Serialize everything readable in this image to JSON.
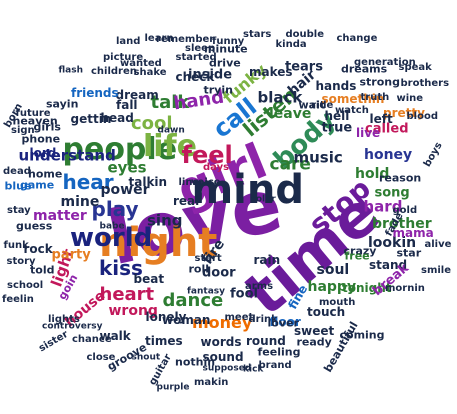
{
  "words": [
    {
      "text": "love",
      "color": "#7b1fa2"
    },
    {
      "text": "time",
      "color": "#6a1b9a"
    },
    {
      "text": "girl",
      "color": "#8e24aa"
    },
    {
      "text": "night",
      "color": "#e67e22"
    },
    {
      "text": "mind",
      "color": "#1b2a4a"
    },
    {
      "text": "people",
      "color": "#2e7d32"
    },
    {
      "text": "life",
      "color": "#7cb342"
    },
    {
      "text": "feel",
      "color": "#c2185b"
    },
    {
      "text": "body",
      "color": "#2e8b57"
    },
    {
      "text": "world",
      "color": "#1a237e"
    },
    {
      "text": "play",
      "color": "#283593"
    },
    {
      "text": "stop",
      "color": "#6a1b9a"
    },
    {
      "text": "hear",
      "color": "#1565c0"
    },
    {
      "text": "call",
      "color": "#1976d2"
    },
    {
      "text": "listen",
      "color": "#2e7d32"
    },
    {
      "text": "talk",
      "color": "#2e7d32"
    },
    {
      "text": "cool",
      "color": "#7cb342"
    },
    {
      "text": "hand",
      "color": "#8e24aa"
    },
    {
      "text": "kiss",
      "color": "#1a237e"
    },
    {
      "text": "heart",
      "color": "#c2185b"
    },
    {
      "text": "dance",
      "color": "#2e7d32"
    },
    {
      "text": "money",
      "color": "#ef6c00"
    },
    {
      "text": "understand",
      "color": "#1a237e"
    },
    {
      "text": "care",
      "color": "#2e7d32"
    },
    {
      "text": "music",
      "color": "#1b2a4a"
    },
    {
      "text": "light",
      "color": "#c2185b"
    },
    {
      "text": "eyes",
      "color": "#2e7d32"
    },
    {
      "text": "mine",
      "color": "#1b2a4a"
    },
    {
      "text": "sing",
      "color": "#1b2a4a"
    },
    {
      "text": "hold",
      "color": "#2e7d32"
    },
    {
      "text": "hard",
      "color": "#8e24aa"
    },
    {
      "text": "fire",
      "color": "#1b2a4a"
    },
    {
      "text": "honey",
      "color": "#283593"
    },
    {
      "text": "matter",
      "color": "#8e24aa"
    },
    {
      "text": "party",
      "color": "#e67e22"
    },
    {
      "text": "soul",
      "color": "#1b2a4a"
    },
    {
      "text": "happy",
      "color": "#2e7d32"
    },
    {
      "text": "house",
      "color": "#c2185b"
    },
    {
      "text": "beat",
      "color": "#1b2a4a"
    },
    {
      "text": "wrong",
      "color": "#c2185b"
    },
    {
      "text": "black",
      "color": "#1b2a4a"
    },
    {
      "text": "leave",
      "color": "#2e7d32"
    },
    {
      "text": "funky",
      "color": "#7cb342"
    },
    {
      "text": "power",
      "color": "#1b2a4a"
    },
    {
      "text": "real",
      "color": "#1b2a4a"
    },
    {
      "text": "fool",
      "color": "#1b2a4a"
    },
    {
      "text": "door",
      "color": "#1b2a4a"
    },
    {
      "text": "brother",
      "color": "#2e7d32"
    },
    {
      "text": "lookin",
      "color": "#1b2a4a"
    },
    {
      "text": "song",
      "color": "#2e7d32"
    },
    {
      "text": "hair",
      "color": "#1b2a4a"
    },
    {
      "text": "woman",
      "color": "#1b2a4a"
    },
    {
      "text": "called",
      "color": "#c2185b"
    },
    {
      "text": "true",
      "color": "#1b2a4a"
    },
    {
      "text": "live",
      "color": "#8e24aa"
    },
    {
      "text": "game",
      "color": "#1565c0"
    },
    {
      "text": "home",
      "color": "#1b2a4a"
    },
    {
      "text": "lord",
      "color": "#1a237e"
    },
    {
      "text": "talkin",
      "color": "#1b2a4a"
    },
    {
      "text": "inside",
      "color": "#1b2a4a"
    },
    {
      "text": "tears",
      "color": "#1b2a4a"
    },
    {
      "text": "pretty",
      "color": "#e67e22"
    },
    {
      "text": "reason",
      "color": "#1b2a4a"
    },
    {
      "text": "crazy",
      "color": "#1b2a4a"
    },
    {
      "text": "tonight",
      "color": "#2e7d32"
    },
    {
      "text": "stand",
      "color": "#1b2a4a"
    },
    {
      "text": "break",
      "color": "#8e24aa"
    },
    {
      "text": "fine",
      "color": "#1565c0"
    },
    {
      "text": "floor",
      "color": "#1565c0"
    },
    {
      "text": "lonely",
      "color": "#1b2a4a"
    },
    {
      "text": "words",
      "color": "#1b2a4a"
    },
    {
      "text": "sound",
      "color": "#1b2a4a"
    },
    {
      "text": "times",
      "color": "#1b2a4a"
    },
    {
      "text": "round",
      "color": "#1b2a4a"
    },
    {
      "text": "feeling",
      "color": "#1b2a4a"
    },
    {
      "text": "touch",
      "color": "#1b2a4a"
    },
    {
      "text": "told",
      "color": "#1b2a4a"
    },
    {
      "text": "rock",
      "color": "#1b2a4a"
    },
    {
      "text": "walk",
      "color": "#1b2a4a"
    },
    {
      "text": "sweet",
      "color": "#1b2a4a"
    },
    {
      "text": "wait",
      "color": "#1b2a4a"
    },
    {
      "text": "dream",
      "color": "#1b2a4a"
    },
    {
      "text": "free",
      "color": "#2e7d32"
    },
    {
      "text": "head",
      "color": "#1b2a4a"
    },
    {
      "text": "gettin",
      "color": "#1b2a4a"
    },
    {
      "text": "check",
      "color": "#1b2a4a"
    },
    {
      "text": "makes",
      "color": "#1b2a4a"
    },
    {
      "text": "fall",
      "color": "#1b2a4a"
    },
    {
      "text": "somethin",
      "color": "#e67e22"
    },
    {
      "text": "hands",
      "color": "#1b2a4a"
    },
    {
      "text": "hell",
      "color": "#1b2a4a"
    },
    {
      "text": "left",
      "color": "#1b2a4a"
    },
    {
      "text": "friends",
      "color": "#1565c0"
    },
    {
      "text": "mama",
      "color": "#8e24aa"
    },
    {
      "text": "star",
      "color": "#1b2a4a"
    },
    {
      "text": "rain",
      "color": "#1b2a4a"
    },
    {
      "text": "drive",
      "color": "#1b2a4a"
    },
    {
      "text": "tryin",
      "color": "#1b2a4a"
    },
    {
      "text": "minute",
      "color": "#1b2a4a"
    },
    {
      "text": "blue",
      "color": "#1565c0"
    },
    {
      "text": "roll",
      "color": "#1b2a4a"
    },
    {
      "text": "lover",
      "color": "#1b2a4a"
    },
    {
      "text": "ready",
      "color": "#1b2a4a"
    },
    {
      "text": "nothin",
      "color": "#1b2a4a"
    },
    {
      "text": "groove",
      "color": "#1b2a4a"
    },
    {
      "text": "goin",
      "color": "#8e24aa"
    },
    {
      "text": "guess",
      "color": "#1b2a4a"
    },
    {
      "text": "line",
      "color": "#1b2a4a"
    },
    {
      "text": "start",
      "color": "#1b2a4a"
    },
    {
      "text": "gold",
      "color": "#1b2a4a"
    },
    {
      "text": "fade",
      "color": "#1b2a4a"
    },
    {
      "text": "strong",
      "color": "#1b2a4a"
    },
    {
      "text": "days",
      "color": "#c2185b"
    },
    {
      "text": "voice",
      "color": "#1b2a4a"
    },
    {
      "text": "ride",
      "color": "#1b2a4a"
    },
    {
      "text": "watch",
      "color": "#1b2a4a"
    },
    {
      "text": "dreams",
      "color": "#1b2a4a"
    },
    {
      "text": "kinda",
      "color": "#1b2a4a"
    },
    {
      "text": "truth",
      "color": "#1b2a4a"
    },
    {
      "text": "heaven",
      "color": "#1b2a4a"
    },
    {
      "text": "sayin",
      "color": "#1b2a4a"
    },
    {
      "text": "children",
      "color": "#1b2a4a"
    },
    {
      "text": "stay",
      "color": "#1b2a4a"
    },
    {
      "text": "girls",
      "color": "#1b2a4a"
    },
    {
      "text": "phone",
      "color": "#1b2a4a"
    },
    {
      "text": "sign",
      "color": "#1b2a4a"
    },
    {
      "text": "dead",
      "color": "#1b2a4a"
    },
    {
      "text": "future",
      "color": "#1b2a4a"
    },
    {
      "text": "funk",
      "color": "#1b2a4a"
    },
    {
      "text": "story",
      "color": "#1b2a4a"
    },
    {
      "text": "school",
      "color": "#1b2a4a"
    },
    {
      "text": "feelin",
      "color": "#1b2a4a"
    },
    {
      "text": "boys",
      "color": "#1b2a4a"
    },
    {
      "text": "smile",
      "color": "#1b2a4a"
    },
    {
      "text": "mornin",
      "color": "#1b2a4a"
    },
    {
      "text": "coming",
      "color": "#1b2a4a"
    },
    {
      "text": "beautiful",
      "color": "#1b2a4a"
    },
    {
      "text": "close",
      "color": "#1b2a4a"
    },
    {
      "text": "chance",
      "color": "#1b2a4a"
    },
    {
      "text": "makin",
      "color": "#1b2a4a"
    },
    {
      "text": "guitar",
      "color": "#1b2a4a"
    },
    {
      "text": "arms",
      "color": "#1b2a4a"
    },
    {
      "text": "meet",
      "color": "#1b2a4a"
    },
    {
      "text": "drink",
      "color": "#1b2a4a"
    },
    {
      "text": "wanted",
      "color": "#1b2a4a"
    },
    {
      "text": "sleep",
      "color": "#1b2a4a"
    },
    {
      "text": "brand",
      "color": "#1b2a4a"
    },
    {
      "text": "remember",
      "color": "#1b2a4a"
    },
    {
      "text": "shake",
      "color": "#1b2a4a"
    },
    {
      "text": "learn",
      "color": "#1b2a4a"
    },
    {
      "text": "started",
      "color": "#1b2a4a"
    },
    {
      "text": "funny",
      "color": "#1b2a4a"
    },
    {
      "text": "picture",
      "color": "#1b2a4a"
    },
    {
      "text": "change",
      "color": "#1b2a4a"
    },
    {
      "text": "double",
      "color": "#1b2a4a"
    },
    {
      "text": "speak",
      "color": "#1b2a4a"
    },
    {
      "text": "generation",
      "color": "#1b2a4a"
    },
    {
      "text": "brothers",
      "color": "#1b2a4a"
    },
    {
      "text": "blood",
      "color": "#1b2a4a"
    },
    {
      "text": "wine",
      "color": "#1b2a4a"
    },
    {
      "text": "alive",
      "color": "#1b2a4a"
    },
    {
      "text": "stars",
      "color": "#1b2a4a"
    },
    {
      "text": "dawn",
      "color": "#1b2a4a"
    },
    {
      "text": "babe",
      "color": "#1b2a4a"
    },
    {
      "text": "land",
      "color": "#1b2a4a"
    },
    {
      "text": "color",
      "color": "#1b2a4a"
    },
    {
      "text": "born",
      "color": "#1b2a4a"
    },
    {
      "text": "lights",
      "color": "#1b2a4a"
    },
    {
      "text": "sister",
      "color": "#1b2a4a"
    },
    {
      "text": "shout",
      "color": "#1b2a4a"
    },
    {
      "text": "purple",
      "color": "#1b2a4a"
    },
    {
      "text": "supposed",
      "color": "#1b2a4a"
    },
    {
      "text": "kick",
      "color": "#1b2a4a"
    },
    {
      "text": "fantasy",
      "color": "#1b2a4a"
    },
    {
      "text": "controversy",
      "color": "#1b2a4a"
    },
    {
      "text": "mouth",
      "color": "#1b2a4a"
    },
    {
      "text": "flash",
      "color": "#1b2a4a"
    },
    {
      "text": "rhythm",
      "color": "#1b2a4a"
    },
    {
      "text": "pick",
      "color": "#1b2a4a"
    },
    {
      "text": "bout",
      "color": "#1b2a4a"
    },
    {
      "text": "walkin",
      "color": "#1b2a4a"
    }
  ]
}
